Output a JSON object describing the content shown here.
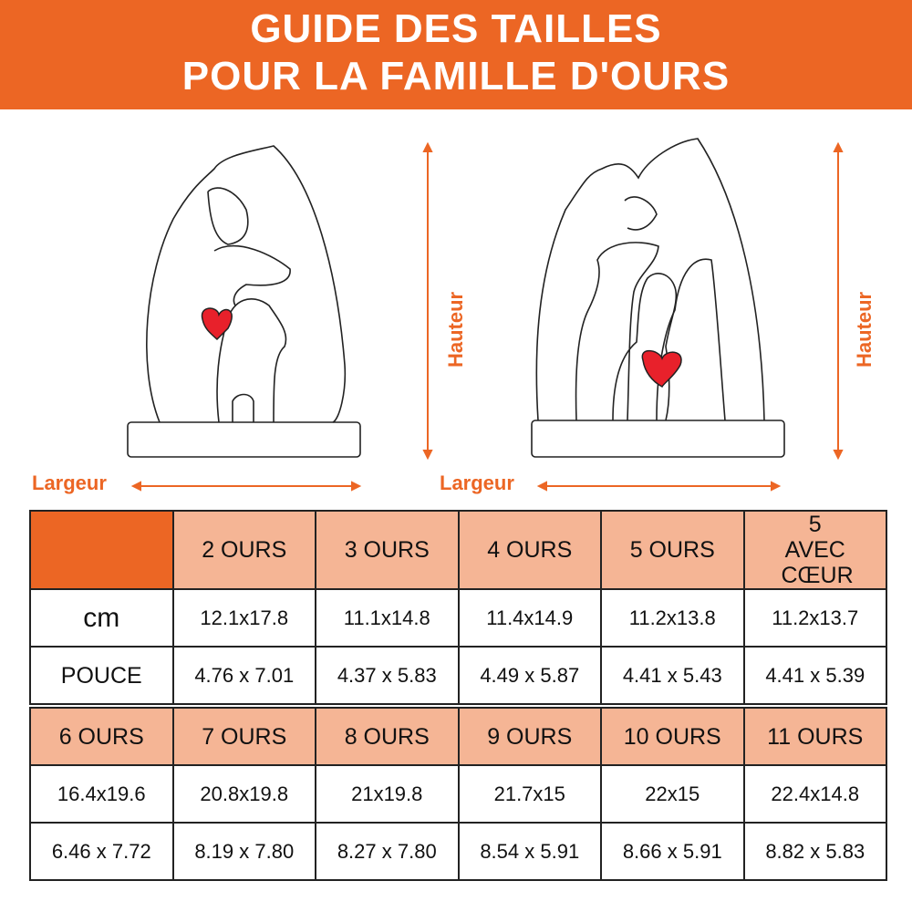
{
  "title": {
    "line1": "GUIDE DES TAILLES",
    "line2": "POUR LA FAMILLE D'OURS"
  },
  "labels": {
    "width": "Largeur",
    "height": "Hauteur"
  },
  "colors": {
    "accent": "#EC6624",
    "header_cell": "#F5B595",
    "heart": "#E8212B"
  },
  "table1": {
    "headers": [
      "2 OURS",
      "3 OURS",
      "4 OURS",
      "5 OURS",
      "5 AVEC CŒUR"
    ],
    "rows": [
      {
        "unit": "cm",
        "values": [
          "12.1x17.8",
          "11.1x14.8",
          "11.4x14.9",
          "11.2x13.8",
          "11.2x13.7"
        ]
      },
      {
        "unit": "POUCE",
        "values": [
          "4.76 x 7.01",
          "4.37 x 5.83",
          "4.49 x 5.87",
          "4.41 x 5.43",
          "4.41 x 5.39"
        ]
      }
    ]
  },
  "table2": {
    "headers": [
      "6 OURS",
      "7 OURS",
      "8 OURS",
      "9 OURS",
      "10 OURS",
      "11 OURS"
    ],
    "rows": [
      {
        "values": [
          "16.4x19.6",
          "20.8x19.8",
          "21x19.8",
          "21.7x15",
          "22x15",
          "22.4x14.8"
        ]
      },
      {
        "values": [
          "6.46 x 7.72",
          "8.19 x 7.80",
          "8.27 x 7.80",
          "8.54 x 5.91",
          "8.66 x 5.91",
          "8.82 x 5.83"
        ]
      }
    ]
  }
}
